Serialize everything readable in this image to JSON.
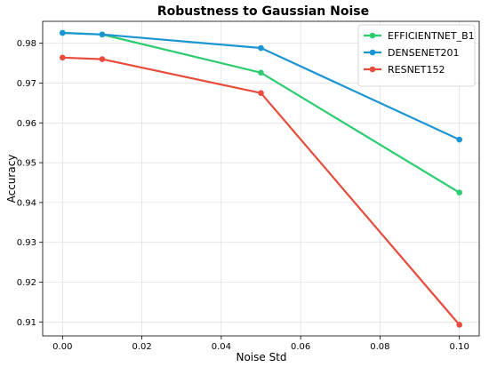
{
  "chart_data": {
    "type": "line",
    "title": "Robustness to Gaussian Noise",
    "xlabel": "Noise Std",
    "ylabel": "Accuracy",
    "x": [
      0.0,
      0.01,
      0.05,
      0.1
    ],
    "xlim": [
      -0.005,
      0.105
    ],
    "ylim": [
      0.9065,
      0.9855
    ],
    "xticks": [
      0.0,
      0.02,
      0.04,
      0.06,
      0.08,
      0.1
    ],
    "xtick_labels": [
      "0.00",
      "0.02",
      "0.04",
      "0.06",
      "0.08",
      "0.10"
    ],
    "yticks": [
      0.91,
      0.92,
      0.93,
      0.94,
      0.95,
      0.96,
      0.97,
      0.98
    ],
    "ytick_labels": [
      "0.91",
      "0.92",
      "0.93",
      "0.94",
      "0.95",
      "0.96",
      "0.97",
      "0.98"
    ],
    "grid": true,
    "legend_position": "top-right",
    "series": [
      {
        "name": "EFFICIENTNET_B1",
        "color": "#2ecc71",
        "values": [
          0.9826,
          0.9822,
          0.9726,
          0.9425
        ]
      },
      {
        "name": "DENSENET201",
        "color": "#1b95d1",
        "values": [
          0.9826,
          0.9822,
          0.9788,
          0.9558
        ]
      },
      {
        "name": "RESNET152",
        "color": "#e74c3c",
        "values": [
          0.9764,
          0.976,
          0.9675,
          0.9093
        ]
      }
    ]
  }
}
